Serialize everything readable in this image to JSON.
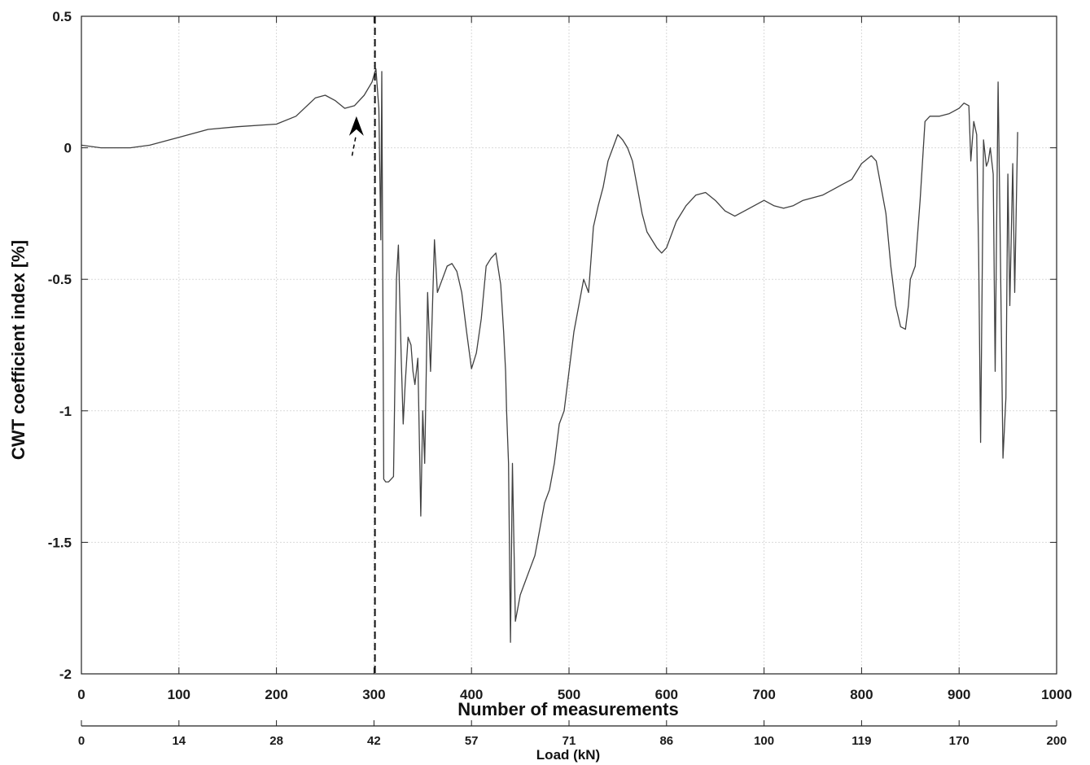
{
  "chart_data": {
    "type": "line",
    "xlabel": "Number of measurements",
    "ylabel": "CWT coefficient index [%]",
    "secondary_xlabel": "Load (kN)",
    "xlim": [
      0,
      1000
    ],
    "ylim": [
      -2,
      0.5
    ],
    "grid": true,
    "x_ticks": [
      "0",
      "100",
      "200",
      "300",
      "400",
      "500",
      "600",
      "700",
      "800",
      "900",
      "1000"
    ],
    "y_ticks": [
      "0.5",
      "0",
      "-0.5",
      "-1",
      "-1.5",
      "-2"
    ],
    "secondary_x_ticks": [
      "0",
      "14",
      "28",
      "42",
      "57",
      "71",
      "86",
      "100",
      "119",
      "170",
      "200"
    ],
    "vertical_marker_x": 301,
    "annotation_arrow_at": [
      282,
      0.12
    ],
    "series": [
      {
        "color": "#404040",
        "x": [
          0,
          20,
          40,
          50,
          70,
          100,
          130,
          160,
          200,
          220,
          240,
          250,
          260,
          270,
          280,
          290,
          298,
          302,
          305,
          307,
          308,
          310,
          312,
          315,
          320,
          323,
          325,
          328,
          330,
          332,
          335,
          338,
          340,
          342,
          345,
          348,
          350,
          352,
          355,
          358,
          360,
          362,
          365,
          370,
          375,
          380,
          385,
          390,
          395,
          400,
          405,
          410,
          415,
          420,
          425,
          430,
          433,
          435,
          436,
          438,
          440,
          442,
          445,
          450,
          455,
          460,
          465,
          470,
          475,
          480,
          485,
          490,
          495,
          500,
          505,
          510,
          515,
          520,
          525,
          530,
          535,
          540,
          545,
          550,
          555,
          560,
          565,
          570,
          575,
          580,
          590,
          595,
          600,
          605,
          610,
          620,
          630,
          640,
          650,
          660,
          670,
          680,
          690,
          700,
          710,
          720,
          730,
          740,
          750,
          760,
          770,
          780,
          790,
          800,
          810,
          815,
          820,
          825,
          830,
          835,
          840,
          845,
          848,
          850,
          855,
          860,
          865,
          870,
          880,
          890,
          900,
          905,
          910,
          912,
          915,
          918,
          920,
          922,
          925,
          928,
          930,
          932,
          935,
          937,
          940,
          942,
          945,
          948,
          950,
          952,
          955,
          957,
          960
        ],
        "y": [
          0.01,
          0.0,
          0.0,
          0.0,
          0.01,
          0.04,
          0.07,
          0.08,
          0.09,
          0.12,
          0.19,
          0.2,
          0.18,
          0.15,
          0.16,
          0.2,
          0.25,
          0.3,
          0.15,
          -0.35,
          0.29,
          -1.26,
          -1.27,
          -1.27,
          -1.25,
          -0.5,
          -0.37,
          -0.8,
          -1.05,
          -0.9,
          -0.72,
          -0.75,
          -0.85,
          -0.9,
          -0.8,
          -1.4,
          -1.0,
          -1.2,
          -0.55,
          -0.85,
          -0.6,
          -0.35,
          -0.55,
          -0.5,
          -0.45,
          -0.44,
          -0.47,
          -0.55,
          -0.7,
          -0.84,
          -0.78,
          -0.65,
          -0.45,
          -0.42,
          -0.4,
          -0.52,
          -0.7,
          -0.85,
          -1.0,
          -1.2,
          -1.88,
          -1.2,
          -1.8,
          -1.7,
          -1.65,
          -1.6,
          -1.55,
          -1.45,
          -1.35,
          -1.3,
          -1.2,
          -1.05,
          -1.0,
          -0.85,
          -0.7,
          -0.6,
          -0.5,
          -0.55,
          -0.3,
          -0.22,
          -0.15,
          -0.05,
          0.0,
          0.05,
          0.03,
          0.0,
          -0.05,
          -0.15,
          -0.25,
          -0.32,
          -0.38,
          -0.4,
          -0.38,
          -0.33,
          -0.28,
          -0.22,
          -0.18,
          -0.17,
          -0.2,
          -0.24,
          -0.26,
          -0.24,
          -0.22,
          -0.2,
          -0.22,
          -0.23,
          -0.22,
          -0.2,
          -0.19,
          -0.18,
          -0.16,
          -0.14,
          -0.12,
          -0.06,
          -0.03,
          -0.05,
          -0.15,
          -0.25,
          -0.45,
          -0.6,
          -0.68,
          -0.69,
          -0.6,
          -0.5,
          -0.45,
          -0.2,
          0.1,
          0.12,
          0.12,
          0.13,
          0.15,
          0.17,
          0.16,
          -0.05,
          0.1,
          0.05,
          -0.4,
          -1.12,
          0.03,
          -0.07,
          -0.05,
          0.0,
          -0.1,
          -0.85,
          0.25,
          -0.3,
          -1.18,
          -0.95,
          -0.1,
          -0.6,
          -0.06,
          -0.55,
          0.06
        ]
      }
    ]
  }
}
